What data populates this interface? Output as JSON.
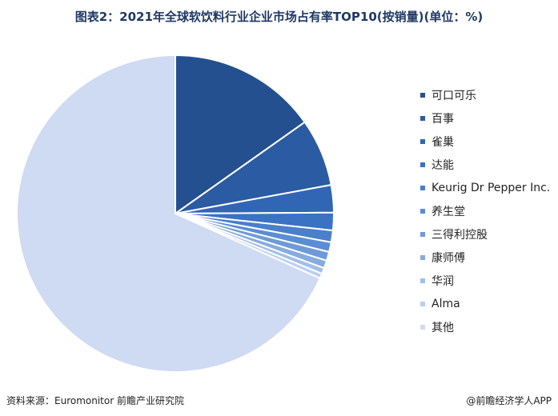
{
  "title": "图表2：2021年全球软饮料行业企业市场占有率TOP10(按销量)(单位：%)",
  "chart_data": {
    "type": "pie",
    "start_angle_deg": 0,
    "direction": "clockwise",
    "slices": [
      {
        "label": "可口可乐",
        "value": 15.2,
        "color": "#24508f"
      },
      {
        "label": "百事",
        "value": 6.9,
        "color": "#2b5ba3"
      },
      {
        "label": "雀巢",
        "value": 2.8,
        "color": "#3166b5"
      },
      {
        "label": "达能",
        "value": 1.8,
        "color": "#3a72c4"
      },
      {
        "label": "Keurig Dr Pepper Inc.",
        "value": 1.2,
        "color": "#4a7fcc"
      },
      {
        "label": "养生堂",
        "value": 1.0,
        "color": "#5b8dd3"
      },
      {
        "label": "三得利控股",
        "value": 0.9,
        "color": "#6f9ad8"
      },
      {
        "label": "康师傅",
        "value": 0.8,
        "color": "#86abdf"
      },
      {
        "label": "华润",
        "value": 0.6,
        "color": "#a3bfe7"
      },
      {
        "label": "Alma",
        "value": 0.5,
        "color": "#bccff0"
      },
      {
        "label": "其他",
        "value": 68.3,
        "color": "#cfdaf3"
      }
    ],
    "legend_position": "right"
  },
  "footer": {
    "source": "资料来源：Euromonitor 前瞻产业研究院",
    "brand": "@前瞻经济学人APP"
  }
}
